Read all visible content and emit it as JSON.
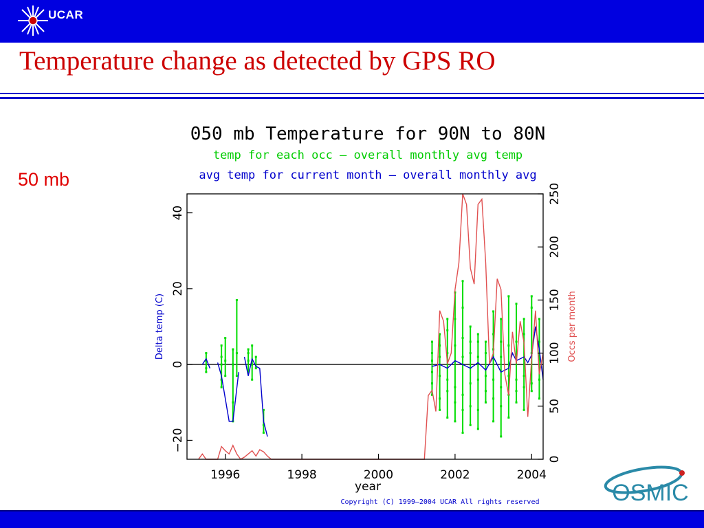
{
  "header": {
    "org_logo_text": "UCAR",
    "slide_title": "Temperature change as detected by GPS RO",
    "side_label": "50 mb"
  },
  "footer_logo_text": "OSMIC",
  "colors": {
    "bar": "#0000e0",
    "title": "#cc0000",
    "delta_line": "#0000cc",
    "occ_points": "#00dd00",
    "occs_line": "#e05050"
  },
  "chart_data": {
    "type": "line",
    "title": "050 mb Temperature for 90N to 80N",
    "subtitle_green": "temp for each occ – overall monthly avg temp",
    "subtitle_blue": "avg temp for current month – overall monthly avg",
    "xlabel": "year",
    "ylabel_left": "Delta temp (C)",
    "ylabel_right": "Occs per month",
    "xlim": [
      1995.0,
      2004.3
    ],
    "ylim_left": [
      -25,
      45
    ],
    "ylim_right": [
      0,
      250
    ],
    "x_ticks": [
      1996,
      1998,
      2000,
      2002,
      2004
    ],
    "y_left_ticks": [
      -20,
      0,
      20,
      40
    ],
    "y_right_ticks": [
      0,
      50,
      100,
      150,
      200,
      250
    ],
    "copyright": "Copyright (C) 1999–2004 UCAR All rights reserved",
    "series": [
      {
        "name": "avg temp for current month – overall monthly avg",
        "axis": "left",
        "segments": [
          [
            [
              1995.4,
              0
            ],
            [
              1995.5,
              1.5
            ],
            [
              1995.6,
              -1
            ]
          ],
          [
            [
              1995.8,
              0.5
            ],
            [
              1995.9,
              -3
            ],
            [
              1996.1,
              -15
            ],
            [
              1996.2,
              -15
            ],
            [
              1996.35,
              -2
            ]
          ],
          [
            [
              1996.5,
              2
            ],
            [
              1996.6,
              -3
            ],
            [
              1996.7,
              1.5
            ],
            [
              1996.8,
              -0.5
            ],
            [
              1996.9,
              -1
            ],
            [
              1997.0,
              -15
            ],
            [
              1997.1,
              -19
            ]
          ],
          [
            [
              2001.4,
              -0.5
            ],
            [
              2001.6,
              0
            ],
            [
              2001.8,
              -1
            ],
            [
              2002.0,
              1
            ],
            [
              2002.2,
              0
            ],
            [
              2002.4,
              -1
            ],
            [
              2002.6,
              0.5
            ],
            [
              2002.8,
              -1.5
            ],
            [
              2003.0,
              2
            ],
            [
              2003.2,
              -2
            ],
            [
              2003.4,
              -1
            ],
            [
              2003.5,
              3
            ],
            [
              2003.6,
              1
            ],
            [
              2003.8,
              2
            ],
            [
              2003.9,
              0.5
            ],
            [
              2004.0,
              2.5
            ],
            [
              2004.1,
              10
            ],
            [
              2004.2,
              4
            ],
            [
              2004.3,
              -4
            ]
          ]
        ]
      },
      {
        "name": "occs per month",
        "axis": "right",
        "segments": [
          [
            [
              1995.3,
              0
            ],
            [
              1995.4,
              5
            ],
            [
              1995.5,
              0
            ],
            [
              1995.6,
              0
            ],
            [
              1995.7,
              0
            ],
            [
              1995.8,
              0
            ],
            [
              1995.9,
              12
            ],
            [
              1996.0,
              8
            ],
            [
              1996.1,
              5
            ],
            [
              1996.2,
              13
            ],
            [
              1996.3,
              5
            ],
            [
              1996.4,
              0
            ],
            [
              1996.5,
              2
            ],
            [
              1996.6,
              5
            ],
            [
              1996.7,
              8
            ],
            [
              1996.8,
              3
            ],
            [
              1996.9,
              9
            ],
            [
              1997.0,
              7
            ],
            [
              1997.1,
              3
            ],
            [
              1997.2,
              0
            ],
            [
              2001.2,
              0
            ],
            [
              2001.3,
              60
            ],
            [
              2001.4,
              65
            ],
            [
              2001.5,
              45
            ],
            [
              2001.6,
              140
            ],
            [
              2001.7,
              130
            ],
            [
              2001.8,
              90
            ],
            [
              2001.9,
              100
            ],
            [
              2002.0,
              160
            ],
            [
              2002.1,
              185
            ],
            [
              2002.2,
              250
            ],
            [
              2002.3,
              240
            ],
            [
              2002.4,
              180
            ],
            [
              2002.5,
              165
            ],
            [
              2002.6,
              240
            ],
            [
              2002.7,
              245
            ],
            [
              2002.8,
              185
            ],
            [
              2002.9,
              90
            ],
            [
              2003.0,
              100
            ],
            [
              2003.1,
              170
            ],
            [
              2003.2,
              160
            ],
            [
              2003.3,
              80
            ],
            [
              2003.4,
              60
            ],
            [
              2003.5,
              120
            ],
            [
              2003.6,
              90
            ],
            [
              2003.7,
              130
            ],
            [
              2003.8,
              110
            ],
            [
              2003.9,
              40
            ],
            [
              2004.0,
              95
            ],
            [
              2004.1,
              140
            ],
            [
              2004.2,
              80
            ],
            [
              2004.3,
              100
            ]
          ]
        ]
      }
    ],
    "occ_points": {
      "name": "temp for each occ – overall monthly avg temp",
      "axis": "left",
      "columns": [
        {
          "x": 1995.5,
          "values": [
            3,
            -2,
            1,
            -1
          ]
        },
        {
          "x": 1995.9,
          "values": [
            -4,
            2,
            5,
            -6,
            0
          ]
        },
        {
          "x": 1996.0,
          "values": [
            7,
            -3,
            1
          ]
        },
        {
          "x": 1996.2,
          "values": [
            -10,
            -15,
            4,
            0
          ]
        },
        {
          "x": 1996.3,
          "values": [
            17,
            -3,
            3
          ]
        },
        {
          "x": 1996.6,
          "values": [
            4,
            -2,
            1,
            3
          ]
        },
        {
          "x": 1996.7,
          "values": [
            5,
            -4,
            0
          ]
        },
        {
          "x": 1996.8,
          "values": [
            2,
            -1
          ]
        },
        {
          "x": 1997.0,
          "values": [
            -12,
            -16,
            -18
          ]
        },
        {
          "x": 2001.4,
          "values": [
            -5,
            3,
            -8,
            1,
            6,
            -2
          ]
        },
        {
          "x": 2001.6,
          "values": [
            -12,
            5,
            -9,
            8,
            -3,
            2
          ]
        },
        {
          "x": 2001.8,
          "values": [
            -14,
            9,
            -7,
            12,
            3,
            -4
          ]
        },
        {
          "x": 2002.0,
          "values": [
            -15,
            12,
            -10,
            19,
            5,
            -6
          ]
        },
        {
          "x": 2002.2,
          "values": [
            -18,
            15,
            -12,
            22,
            7,
            -8,
            2
          ]
        },
        {
          "x": 2002.4,
          "values": [
            -16,
            10,
            -11,
            6,
            -5,
            3
          ]
        },
        {
          "x": 2002.6,
          "values": [
            -17,
            8,
            -12,
            6,
            -4,
            2
          ]
        },
        {
          "x": 2002.8,
          "values": [
            -10,
            6,
            -7,
            3,
            -3
          ]
        },
        {
          "x": 2003.0,
          "values": [
            -15,
            14,
            -9,
            8,
            -4,
            4
          ]
        },
        {
          "x": 2003.2,
          "values": [
            -19,
            12,
            -11,
            6,
            -6,
            2
          ]
        },
        {
          "x": 2003.4,
          "values": [
            -14,
            18,
            -8,
            5,
            -3
          ]
        },
        {
          "x": 2003.6,
          "values": [
            -10,
            16,
            -7,
            6,
            -4
          ]
        },
        {
          "x": 2003.8,
          "values": [
            -12,
            12,
            -6,
            8,
            -3
          ]
        },
        {
          "x": 2004.0,
          "values": [
            -7,
            15,
            -5,
            18,
            3
          ]
        },
        {
          "x": 2004.2,
          "values": [
            -9,
            12,
            -4,
            6
          ]
        }
      ]
    }
  }
}
